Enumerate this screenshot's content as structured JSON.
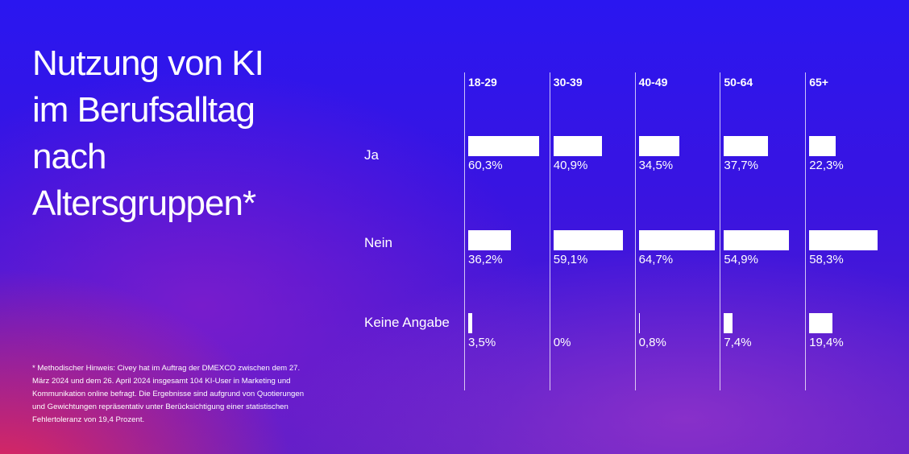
{
  "chart_data": {
    "type": "bar",
    "title": "Nutzung von KI im Berufsalltag nach Altersgruppen*",
    "categories": [
      "18-29",
      "30-39",
      "40-49",
      "50-64",
      "65+"
    ],
    "series": [
      {
        "name": "Ja",
        "color": "#ffffff",
        "values": [
          60.3,
          40.9,
          34.5,
          37.7,
          22.3
        ],
        "value_labels": [
          "60,3%",
          "40,9%",
          "34,5%",
          "37,7%",
          "22,3%"
        ]
      },
      {
        "name": "Nein",
        "color": "#ffffff",
        "values": [
          36.2,
          59.1,
          64.7,
          54.9,
          58.3
        ],
        "value_labels": [
          "36,2%",
          "59,1%",
          "64,7%",
          "54,9%",
          "58,3%"
        ]
      },
      {
        "name": "Keine Angabe",
        "color": "#ffffff",
        "values": [
          3.5,
          0,
          0.8,
          7.4,
          19.4
        ],
        "value_labels": [
          "3,5%",
          "0%",
          "0,8%",
          "7,4%",
          "19,4%"
        ]
      }
    ],
    "footnote": "* Methodischer Hinweis: Civey hat im Auftrag der DMEXCO zwischen dem 27. März 2024 und dem 26. April 2024 insgesamt 104 KI-User in Marketing und Kommunikation online befragt. Die Ergebnisse sind aufgrund von Quotierungen und Gewichtungen repräsentativ unter Berücksichtigung einer statistischen Fehlertoleranz von 19,4 Prozent."
  }
}
